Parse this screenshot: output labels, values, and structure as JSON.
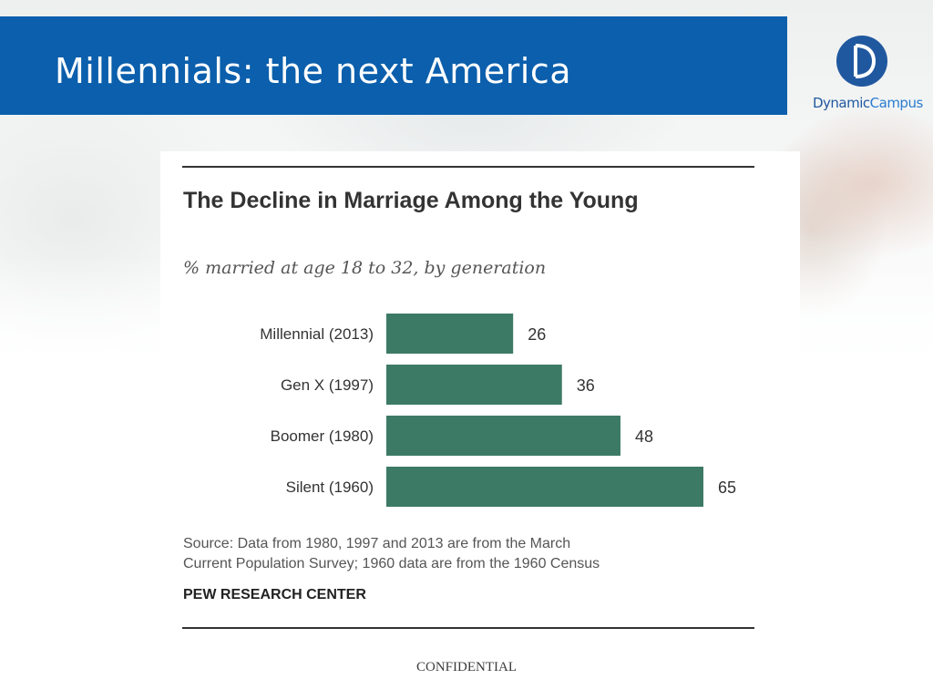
{
  "slide": {
    "title": "Millennials: the next America",
    "footer": "CONFIDENTIAL"
  },
  "logo": {
    "word1": "Dynamic",
    "word2": "Campus"
  },
  "colors": {
    "title_bar": "#0b5fac",
    "bar": "#3d7a66"
  },
  "chart_data": {
    "type": "bar",
    "orientation": "horizontal",
    "title": "The Decline in Marriage Among the Young",
    "subtitle": "% married at age 18 to 32, by generation",
    "categories": [
      "Millennial (2013)",
      "Gen X (1997)",
      "Boomer (1980)",
      "Silent (1960)"
    ],
    "values": [
      26,
      36,
      48,
      65
    ],
    "xlim": [
      0,
      65
    ],
    "grid": false,
    "legend": "none",
    "source_lines": [
      "Source: Data from 1980, 1997 and 2013 are from the March",
      "Current Population Survey; 1960 data are from the 1960 Census"
    ],
    "credit": "PEW RESEARCH CENTER"
  }
}
